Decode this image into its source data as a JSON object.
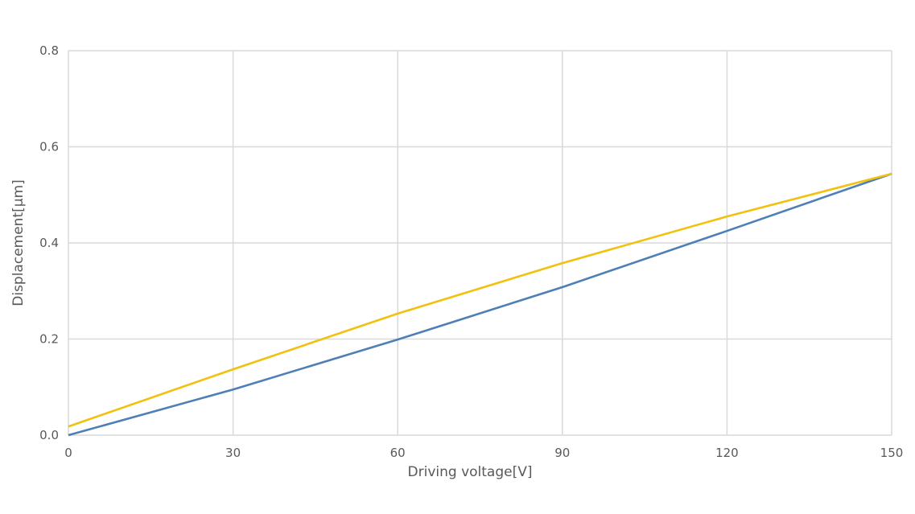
{
  "chart_data": {
    "type": "line",
    "title": "",
    "xlabel": "Driving voltage[V]",
    "ylabel": "Displacement[μm]",
    "xlim": [
      0,
      150
    ],
    "ylim": [
      0,
      0.8
    ],
    "x_ticks": [
      "0",
      "30",
      "60",
      "90",
      "120",
      "150"
    ],
    "y_ticks": [
      "0.0",
      "0.2",
      "0.4",
      "0.6",
      "0.8"
    ],
    "grid": true,
    "legend": "none",
    "x": [
      0,
      30,
      60,
      90,
      120,
      150
    ],
    "series": [
      {
        "color": "#4e7fb5",
        "values": [
          0.0,
          0.095,
          0.199,
          0.308,
          0.425,
          0.544
        ]
      },
      {
        "color": "#f2c10e",
        "values": [
          0.018,
          0.137,
          0.253,
          0.358,
          0.455,
          0.544
        ]
      }
    ]
  }
}
